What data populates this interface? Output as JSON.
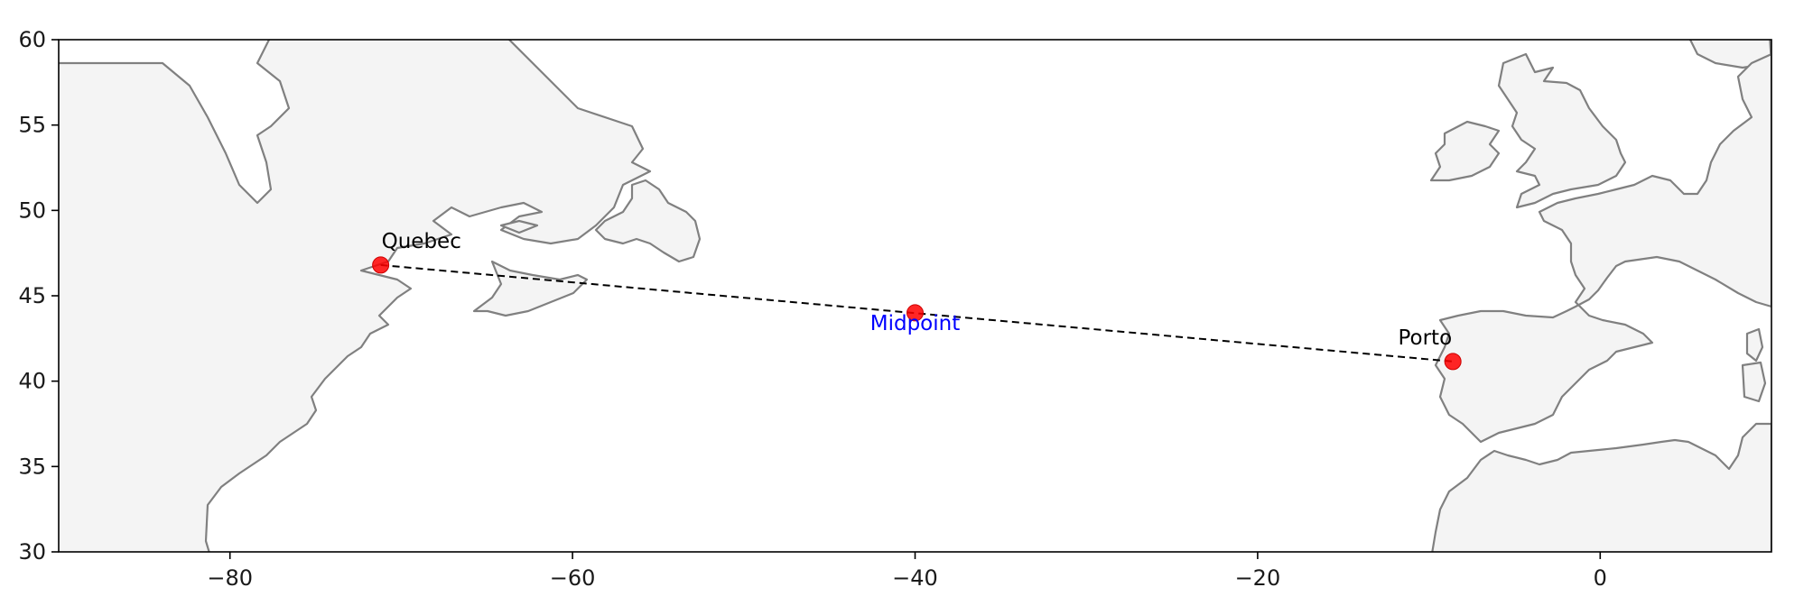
{
  "chart_data": {
    "type": "scatter",
    "projection": "PlateCarree",
    "xlim": [
      -90,
      10
    ],
    "ylim": [
      30,
      60
    ],
    "x_ticks": [
      -80,
      -60,
      -40,
      -20,
      0
    ],
    "y_ticks": [
      30,
      35,
      40,
      45,
      50,
      55,
      60
    ],
    "x_tick_labels": [
      "−80",
      "−60",
      "−40",
      "−20",
      "0"
    ],
    "y_tick_labels": [
      "30",
      "35",
      "40",
      "45",
      "50",
      "55",
      "60"
    ],
    "grid": false,
    "points": [
      {
        "label": "Quebec",
        "lon": -71.2,
        "lat": 46.8,
        "color": "#ff0000"
      },
      {
        "label": "Midpoint",
        "lon": -40.0,
        "lat": 44.0,
        "color": "#ff0000",
        "label_color": "#0000ff"
      },
      {
        "label": "Porto",
        "lon": -8.6,
        "lat": 41.15,
        "color": "#ff0000"
      }
    ],
    "route": {
      "from": "Quebec",
      "to": "Porto",
      "style": "dashed",
      "color": "#000000"
    },
    "land_color": "#f4f4f4",
    "coastline_color": "#808080"
  }
}
